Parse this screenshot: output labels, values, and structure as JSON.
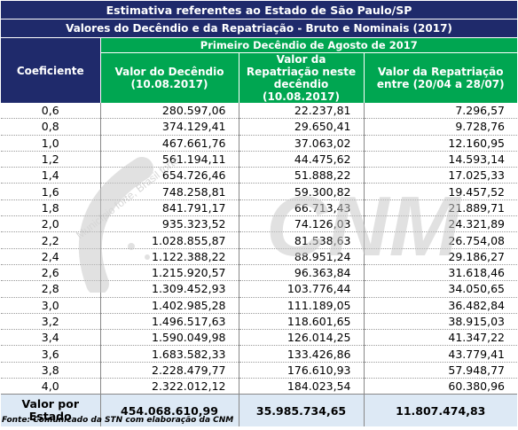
{
  "header": {
    "title": "Estimativa referentes ao Estado de São Paulo/SP",
    "subtitle": "Valores do Decêndio e da Repatriação - Bruto e Nominais (2017)",
    "group": "Primeiro Decêndio de Agosto de 2017"
  },
  "columns": {
    "coef": "Coeficiente",
    "col1": "Valor do Decêndio (10.08.2017)",
    "col2": "Valor da Repatriação neste decêndio (10.08.2017)",
    "col3": "Valor da Repatriação entre (20/04 a 28/07)"
  },
  "rows": [
    {
      "coef": "0,6",
      "v1": "280.597,06",
      "v2": "22.237,81",
      "v3": "7.296,57"
    },
    {
      "coef": "0,8",
      "v1": "374.129,41",
      "v2": "29.650,41",
      "v3": "9.728,76"
    },
    {
      "coef": "1,0",
      "v1": "467.661,76",
      "v2": "37.063,02",
      "v3": "12.160,95"
    },
    {
      "coef": "1,2",
      "v1": "561.194,11",
      "v2": "44.475,62",
      "v3": "14.593,14"
    },
    {
      "coef": "1,4",
      "v1": "654.726,46",
      "v2": "51.888,22",
      "v3": "17.025,33"
    },
    {
      "coef": "1,6",
      "v1": "748.258,81",
      "v2": "59.300,82",
      "v3": "19.457,52"
    },
    {
      "coef": "1,8",
      "v1": "841.791,17",
      "v2": "66.713,43",
      "v3": "21.889,71"
    },
    {
      "coef": "2,0",
      "v1": "935.323,52",
      "v2": "74.126,03",
      "v3": "24.321,89"
    },
    {
      "coef": "2,2",
      "v1": "1.028.855,87",
      "v2": "81.538,63",
      "v3": "26.754,08"
    },
    {
      "coef": "2,4",
      "v1": "1.122.388,22",
      "v2": "88.951,24",
      "v3": "29.186,27"
    },
    {
      "coef": "2,6",
      "v1": "1.215.920,57",
      "v2": "96.363,84",
      "v3": "31.618,46"
    },
    {
      "coef": "2,8",
      "v1": "1.309.452,93",
      "v2": "103.776,44",
      "v3": "34.050,65"
    },
    {
      "coef": "3,0",
      "v1": "1.402.985,28",
      "v2": "111.189,05",
      "v3": "36.482,84"
    },
    {
      "coef": "3,2",
      "v1": "1.496.517,63",
      "v2": "118.601,65",
      "v3": "38.915,03"
    },
    {
      "coef": "3,4",
      "v1": "1.590.049,98",
      "v2": "126.014,25",
      "v3": "41.347,22"
    },
    {
      "coef": "3,6",
      "v1": "1.683.582,33",
      "v2": "133.426,86",
      "v3": "43.779,41"
    },
    {
      "coef": "3,8",
      "v1": "2.228.479,77",
      "v2": "176.610,93",
      "v3": "57.948,77"
    },
    {
      "coef": "4,0",
      "v1": "2.322.012,12",
      "v2": "184.023,54",
      "v3": "60.380,96"
    }
  ],
  "total": {
    "label": "Valor por Estado",
    "v1": "454.068.610,99",
    "v2": "35.985.734,65",
    "v3": "11.807.474,83"
  },
  "source": "Fonte: Comunicado da STN com elaboração da CNM",
  "watermark": {
    "text": "CNM",
    "tagline": "Município forte, Brasil forte",
    "color": "#c9c9c9"
  },
  "colors": {
    "navy": "#1f2a6b",
    "green": "#00a651",
    "total_bg": "#dde9f5"
  }
}
